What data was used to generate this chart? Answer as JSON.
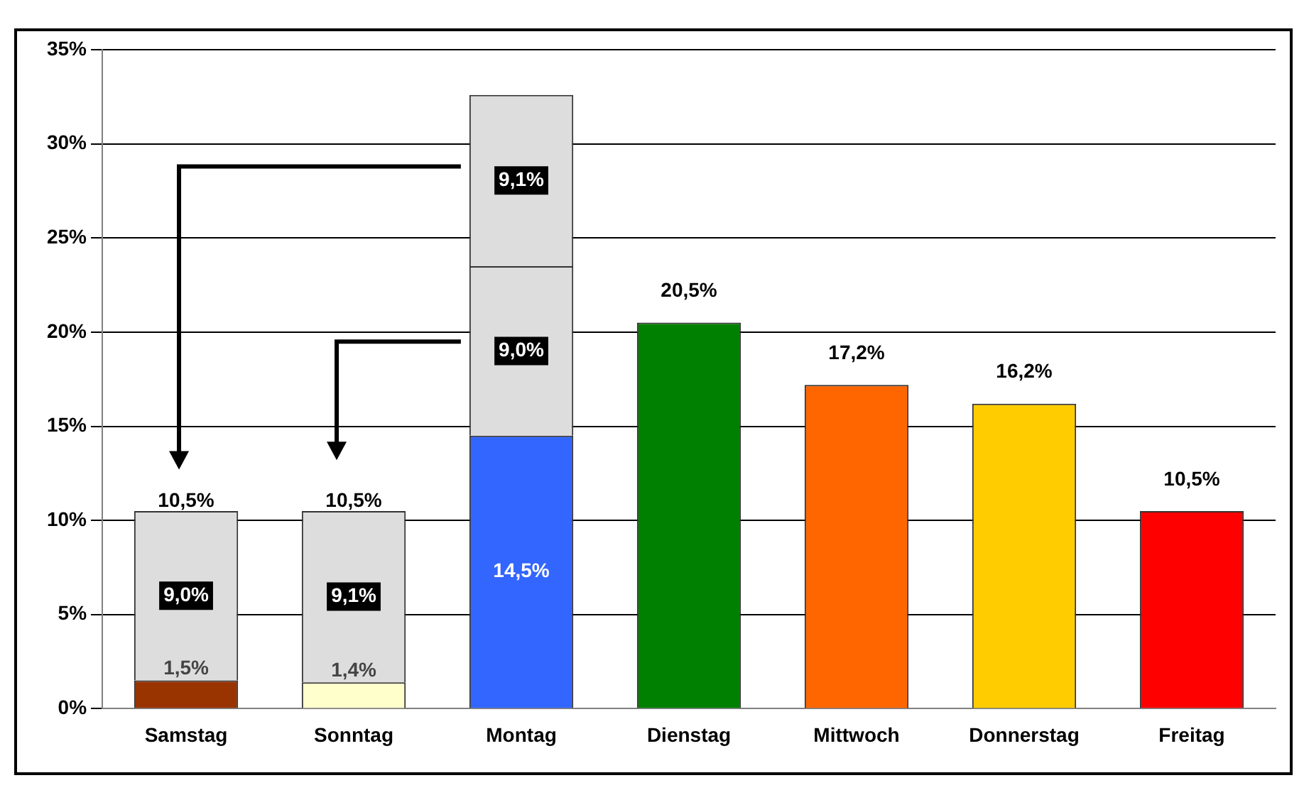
{
  "chart_data": {
    "type": "bar",
    "stacked": true,
    "categories": [
      "Samstag",
      "Sonntag",
      "Montag",
      "Dienstag",
      "Mittwoch",
      "Donnerstag",
      "Freitag"
    ],
    "series": [
      {
        "colors": [
          "#993300",
          "#ffffcc",
          "#3366ff",
          "#008000",
          "#ff6600",
          "#ffcc00",
          "#ff0000"
        ],
        "values": [
          1.5,
          1.4,
          14.5,
          20.5,
          17.2,
          16.2,
          10.5
        ],
        "value_labels": [
          "1,5%",
          "1,4%",
          "14,5%",
          null,
          null,
          null,
          null
        ]
      },
      {
        "color": "#dddddd",
        "values": [
          9.0,
          9.1,
          9.0,
          null,
          null,
          null,
          null
        ],
        "value_labels": [
          "9,0%",
          "9,1%",
          "9,0%",
          null,
          null,
          null,
          null
        ]
      },
      {
        "color": "#dddddd",
        "values": [
          null,
          null,
          9.1,
          null,
          null,
          null,
          null
        ],
        "value_labels": [
          null,
          null,
          "9,1%",
          null,
          null,
          null,
          null
        ]
      }
    ],
    "totals": [
      "10,5%",
      "10,5%",
      null,
      "20,5%",
      "17,2%",
      "16,2%",
      "10,5%"
    ],
    "ylim": [
      0,
      35
    ],
    "yticks": [
      {
        "value": 0,
        "label": "0%"
      },
      {
        "value": 5,
        "label": "5%"
      },
      {
        "value": 10,
        "label": "10%"
      },
      {
        "value": 15,
        "label": "15%"
      },
      {
        "value": 20,
        "label": "20%"
      },
      {
        "value": 25,
        "label": "25%"
      },
      {
        "value": 30,
        "label": "30%"
      },
      {
        "value": 35,
        "label": "35%"
      }
    ],
    "grid": "y",
    "legend": false
  }
}
